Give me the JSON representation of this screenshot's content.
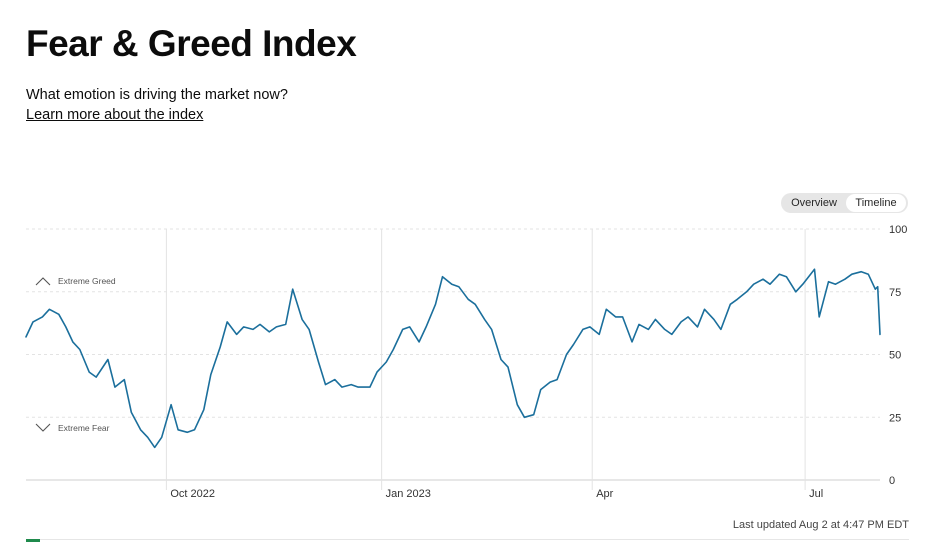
{
  "header": {
    "title": "Fear & Greed Index",
    "subtitle": "What emotion is driving the market now?",
    "learn_more": "Learn more about the index"
  },
  "toggle": {
    "overview": "Overview",
    "timeline": "Timeline",
    "selected": "Timeline"
  },
  "footer": {
    "last_updated": "Last updated Aug 2 at 4:47 PM EDT"
  },
  "colors": {
    "line": "#1b6f9c",
    "grid": "#e3e3e3",
    "text": "#0c0c0c",
    "muted": "#555555"
  },
  "chart_data": {
    "type": "line",
    "title": "",
    "xlabel": "",
    "ylabel": "",
    "ylim": [
      0,
      100
    ],
    "y_ticks": [
      "100",
      "75",
      "50",
      "25",
      "0"
    ],
    "x_tick_labels": [
      "Oct 2022",
      "Jan 2023",
      "Apr",
      "Jul"
    ],
    "x_range": [
      "2022-08-02",
      "2023-08-02"
    ],
    "x_ticks": [
      "2022-10-01",
      "2023-01-01",
      "2023-04-01",
      "2023-07-01"
    ],
    "grid": true,
    "zone_labels": [
      {
        "label": "Extreme Greed",
        "icon": "chevron-up-icon"
      },
      {
        "label": "Extreme Fear",
        "icon": "chevron-down-icon"
      }
    ],
    "series": [
      {
        "x": [
          "2022-08-02",
          "2022-08-05",
          "2022-08-09",
          "2022-08-12",
          "2022-08-16",
          "2022-08-19",
          "2022-08-22",
          "2022-08-25",
          "2022-08-29",
          "2022-09-01",
          "2022-09-06",
          "2022-09-09",
          "2022-09-13",
          "2022-09-16",
          "2022-09-20",
          "2022-09-23",
          "2022-09-26",
          "2022-09-29",
          "2022-10-03",
          "2022-10-06",
          "2022-10-10",
          "2022-10-13",
          "2022-10-17",
          "2022-10-20",
          "2022-10-24",
          "2022-10-27",
          "2022-10-31",
          "2022-11-03",
          "2022-11-07",
          "2022-11-10",
          "2022-11-14",
          "2022-11-17",
          "2022-11-21",
          "2022-11-24",
          "2022-11-28",
          "2022-12-01",
          "2022-12-05",
          "2022-12-08",
          "2022-12-12",
          "2022-12-15",
          "2022-12-19",
          "2022-12-22",
          "2022-12-27",
          "2022-12-30",
          "2023-01-03",
          "2023-01-06",
          "2023-01-10",
          "2023-01-13",
          "2023-01-17",
          "2023-01-20",
          "2023-01-24",
          "2023-01-27",
          "2023-01-31",
          "2023-02-03",
          "2023-02-07",
          "2023-02-10",
          "2023-02-14",
          "2023-02-17",
          "2023-02-21",
          "2023-02-24",
          "2023-02-28",
          "2023-03-03",
          "2023-03-07",
          "2023-03-10",
          "2023-03-14",
          "2023-03-17",
          "2023-03-21",
          "2023-03-24",
          "2023-03-28",
          "2023-03-31",
          "2023-04-04",
          "2023-04-07",
          "2023-04-11",
          "2023-04-14",
          "2023-04-18",
          "2023-04-21",
          "2023-04-25",
          "2023-04-28",
          "2023-05-02",
          "2023-05-05",
          "2023-05-09",
          "2023-05-12",
          "2023-05-16",
          "2023-05-19",
          "2023-05-23",
          "2023-05-26",
          "2023-05-30",
          "2023-06-02",
          "2023-06-06",
          "2023-06-09",
          "2023-06-13",
          "2023-06-16",
          "2023-06-20",
          "2023-06-23",
          "2023-06-27",
          "2023-06-30",
          "2023-07-05",
          "2023-07-07",
          "2023-07-11",
          "2023-07-14",
          "2023-07-18",
          "2023-07-21",
          "2023-07-25",
          "2023-07-28",
          "2023-07-31",
          "2023-08-01",
          "2023-08-02"
        ],
        "y": [
          57,
          63,
          65,
          68,
          66,
          61,
          55,
          52,
          43,
          41,
          48,
          37,
          40,
          27,
          20,
          17,
          13,
          17,
          30,
          20,
          19,
          20,
          28,
          42,
          53,
          63,
          58,
          61,
          60,
          62,
          59,
          61,
          62,
          76,
          64,
          60,
          47,
          38,
          40,
          37,
          38,
          37,
          37,
          43,
          47,
          52,
          60,
          61,
          55,
          61,
          70,
          81,
          78,
          77,
          72,
          70,
          64,
          60,
          48,
          45,
          30,
          25,
          26,
          36,
          39,
          40,
          50,
          54,
          60,
          61,
          58,
          68,
          65,
          65,
          55,
          62,
          60,
          64,
          60,
          58,
          63,
          65,
          61,
          68,
          64,
          60,
          70,
          72,
          75,
          78,
          80,
          78,
          82,
          81,
          75,
          78,
          84,
          65,
          79,
          78,
          80,
          82,
          83,
          82,
          76,
          77,
          58
        ]
      }
    ]
  }
}
